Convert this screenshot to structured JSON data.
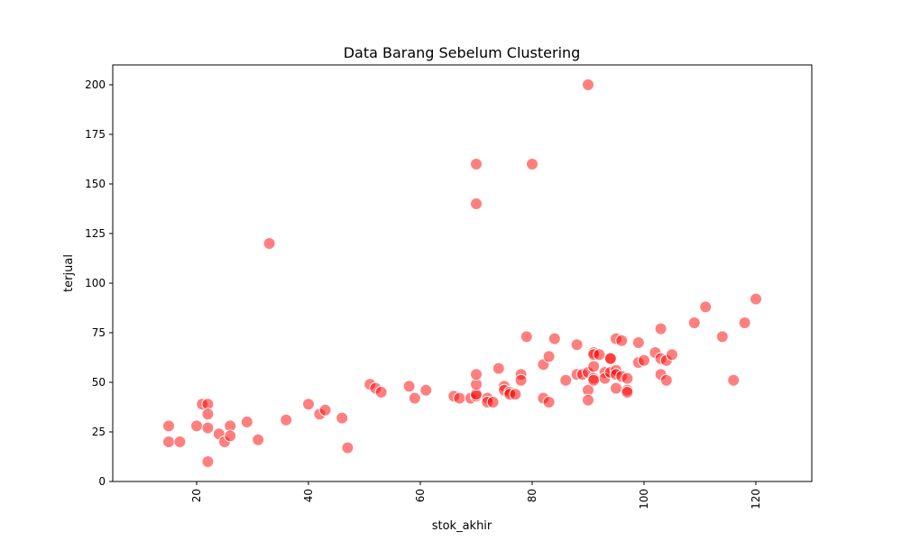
{
  "chart_data": {
    "type": "scatter",
    "title": "Data Barang Sebelum Clustering",
    "xlabel": "stok_akhir",
    "ylabel": "terjual",
    "xlim": [
      5,
      130
    ],
    "ylim": [
      0,
      210
    ],
    "xticks": [
      20,
      40,
      60,
      80,
      100,
      120
    ],
    "yticks": [
      0,
      25,
      50,
      75,
      100,
      125,
      150,
      175,
      200
    ],
    "x_tick_rotation": 90,
    "grid": false,
    "legend": "none",
    "point_color": "#ff0000",
    "point_alpha": 0.5,
    "point_edge_color": "#ffffff",
    "points": [
      [
        15,
        28
      ],
      [
        15,
        20
      ],
      [
        17,
        20
      ],
      [
        20,
        28
      ],
      [
        21,
        39
      ],
      [
        22,
        39
      ],
      [
        22,
        34
      ],
      [
        22,
        27
      ],
      [
        22,
        10
      ],
      [
        24,
        24
      ],
      [
        25,
        20
      ],
      [
        26,
        28
      ],
      [
        26,
        23
      ],
      [
        29,
        30
      ],
      [
        31,
        21
      ],
      [
        33,
        120
      ],
      [
        36,
        31
      ],
      [
        40,
        39
      ],
      [
        42,
        34
      ],
      [
        43,
        36
      ],
      [
        46,
        32
      ],
      [
        47,
        17
      ],
      [
        51,
        49
      ],
      [
        52,
        47
      ],
      [
        53,
        45
      ],
      [
        58,
        48
      ],
      [
        59,
        42
      ],
      [
        61,
        46
      ],
      [
        66,
        43
      ],
      [
        67,
        42
      ],
      [
        69,
        42
      ],
      [
        70,
        43
      ],
      [
        70,
        44
      ],
      [
        70,
        49
      ],
      [
        70,
        54
      ],
      [
        70,
        160
      ],
      [
        70,
        140
      ],
      [
        72,
        42
      ],
      [
        72,
        40
      ],
      [
        73,
        40
      ],
      [
        74,
        57
      ],
      [
        75,
        48
      ],
      [
        75,
        46
      ],
      [
        76,
        45
      ],
      [
        76,
        44
      ],
      [
        77,
        44
      ],
      [
        78,
        54
      ],
      [
        78,
        51
      ],
      [
        79,
        73
      ],
      [
        80,
        160
      ],
      [
        82,
        59
      ],
      [
        82,
        42
      ],
      [
        83,
        63
      ],
      [
        83,
        40
      ],
      [
        84,
        72
      ],
      [
        86,
        51
      ],
      [
        88,
        69
      ],
      [
        88,
        54
      ],
      [
        89,
        54
      ],
      [
        90,
        55
      ],
      [
        90,
        46
      ],
      [
        90,
        41
      ],
      [
        90,
        200
      ],
      [
        91,
        65
      ],
      [
        91,
        64
      ],
      [
        91,
        58
      ],
      [
        91,
        52
      ],
      [
        91,
        51
      ],
      [
        92,
        64
      ],
      [
        93,
        55
      ],
      [
        93,
        52
      ],
      [
        94,
        62
      ],
      [
        94,
        62
      ],
      [
        94,
        55
      ],
      [
        95,
        72
      ],
      [
        95,
        56
      ],
      [
        95,
        54
      ],
      [
        95,
        47
      ],
      [
        96,
        71
      ],
      [
        96,
        53
      ],
      [
        97,
        52
      ],
      [
        97,
        46
      ],
      [
        97,
        45
      ],
      [
        99,
        70
      ],
      [
        99,
        60
      ],
      [
        100,
        61
      ],
      [
        102,
        65
      ],
      [
        103,
        77
      ],
      [
        103,
        62
      ],
      [
        103,
        54
      ],
      [
        104,
        61
      ],
      [
        104,
        51
      ],
      [
        105,
        64
      ],
      [
        109,
        80
      ],
      [
        111,
        88
      ],
      [
        114,
        73
      ],
      [
        116,
        51
      ],
      [
        118,
        80
      ],
      [
        120,
        92
      ]
    ]
  }
}
